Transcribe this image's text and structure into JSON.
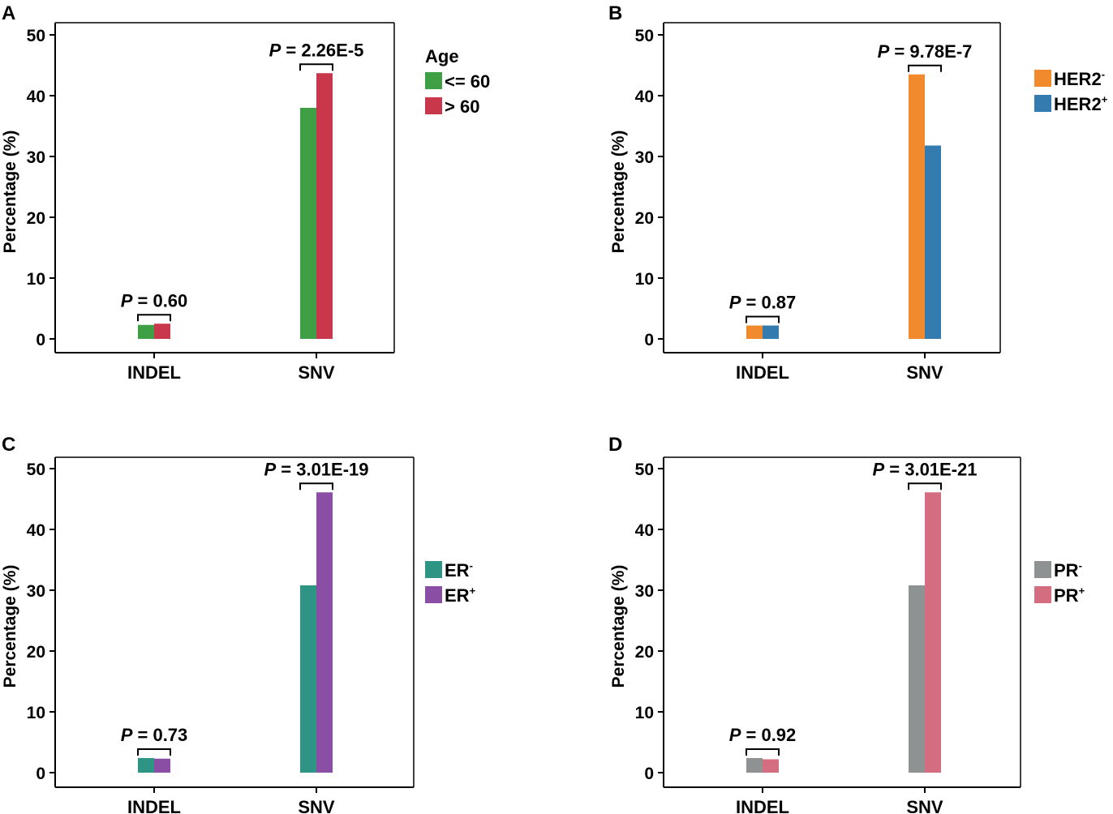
{
  "chart_data": [
    {
      "panel": "A",
      "type": "bar",
      "categories": [
        "INDEL",
        "SNV"
      ],
      "ylabel": "Percentage (%)",
      "ylim": [
        0,
        52
      ],
      "yticks": [
        0,
        10,
        20,
        30,
        40,
        50
      ],
      "legend_title": "Age",
      "legend_position": "top-right",
      "series": [
        {
          "name": "<= 60",
          "sup": "",
          "color": "#3f9f45",
          "values": [
            2.3,
            38.0
          ]
        },
        {
          "name": "> 60",
          "sup": "",
          "color": "#c8374b",
          "values": [
            2.5,
            43.7
          ]
        }
      ],
      "pvalues": [
        {
          "prefix": "P",
          "text": " = 0.60"
        },
        {
          "prefix": "P",
          "text": " = 2.26E-5"
        }
      ]
    },
    {
      "panel": "B",
      "type": "bar",
      "categories": [
        "INDEL",
        "SNV"
      ],
      "ylabel": "Percentage (%)",
      "ylim": [
        0,
        52
      ],
      "yticks": [
        0,
        10,
        20,
        30,
        40,
        50
      ],
      "legend_title": "",
      "legend_position": "top-right",
      "series": [
        {
          "name": "HER2",
          "sup": "-",
          "color": "#f18a2d",
          "values": [
            2.2,
            43.5
          ]
        },
        {
          "name": "HER2",
          "sup": "+",
          "color": "#347cb0",
          "values": [
            2.2,
            31.8
          ]
        }
      ],
      "pvalues": [
        {
          "prefix": "P",
          "text": " = 0.87"
        },
        {
          "prefix": "P",
          "text": " = 9.78E-7"
        }
      ]
    },
    {
      "panel": "C",
      "type": "bar",
      "categories": [
        "INDEL",
        "SNV"
      ],
      "ylabel": "Percentage (%)",
      "ylim": [
        0,
        52
      ],
      "yticks": [
        0,
        10,
        20,
        30,
        40,
        50
      ],
      "legend_title": "",
      "legend_position": "right",
      "series": [
        {
          "name": "ER",
          "sup": "-",
          "color": "#2e9484",
          "values": [
            2.4,
            30.8
          ]
        },
        {
          "name": "ER",
          "sup": "+",
          "color": "#8a4fa5",
          "values": [
            2.3,
            46.1
          ]
        }
      ],
      "pvalues": [
        {
          "prefix": "P",
          "text": " = 0.73"
        },
        {
          "prefix": "P",
          "text": " = 3.01E-19"
        }
      ]
    },
    {
      "panel": "D",
      "type": "bar",
      "categories": [
        "INDEL",
        "SNV"
      ],
      "ylabel": "Percentage (%)",
      "ylim": [
        0,
        52
      ],
      "yticks": [
        0,
        10,
        20,
        30,
        40,
        50
      ],
      "legend_title": "",
      "legend_position": "right",
      "series": [
        {
          "name": "PR",
          "sup": "-",
          "color": "#8f9292",
          "values": [
            2.4,
            30.8
          ]
        },
        {
          "name": "PR",
          "sup": "+",
          "color": "#d46d80",
          "values": [
            2.2,
            46.1
          ]
        }
      ],
      "pvalues": [
        {
          "prefix": "P",
          "text": " = 0.92"
        },
        {
          "prefix": "P",
          "text": " = 3.01E-21"
        }
      ]
    }
  ]
}
